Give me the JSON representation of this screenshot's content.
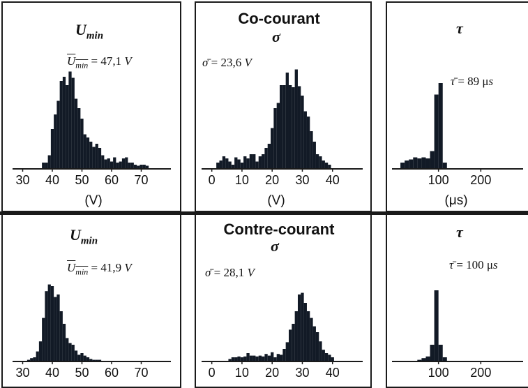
{
  "figure": {
    "rows": [
      {
        "heading": "Co-courant",
        "panels": [
          {
            "var_base": "U",
            "var_sub": "min",
            "stat_lhs_base": "U",
            "stat_lhs_sub": "min",
            "stat_rhs": "= 47,1 ",
            "stat_unit": "V",
            "unit": "(V)"
          },
          {
            "var_symbol": "σ",
            "stat_lhs": "σ̄",
            "stat_rhs": " = 23,6 ",
            "stat_unit": "V",
            "unit": "(V)"
          },
          {
            "var_symbol": "τ",
            "stat_lhs": "τ̄",
            "stat_rhs": " = 89 μ",
            "stat_unit": "s",
            "unit": "(μs)"
          }
        ]
      },
      {
        "heading": "Contre-courant",
        "panels": [
          {
            "var_base": "U",
            "var_sub": "min",
            "stat_lhs_base": "U",
            "stat_lhs_sub": "min",
            "stat_rhs": "= 41,9 ",
            "stat_unit": "V",
            "unit": ""
          },
          {
            "var_symbol": "σ",
            "stat_lhs": "σ̄",
            "stat_rhs": " = 28,1 ",
            "stat_unit": "V",
            "unit": ""
          },
          {
            "var_symbol": "τ",
            "stat_lhs": "τ̄",
            "stat_rhs": " = 100 μ",
            "stat_unit": "s",
            "unit": ""
          }
        ]
      }
    ]
  },
  "style": {
    "bar_color": "#121a26",
    "axis_color": "#1a1a1a",
    "frame_color": "#1a1a1a"
  },
  "chart_data": [
    {
      "type": "bar",
      "id": "co-umin",
      "xlim": [
        28,
        80
      ],
      "ylim": [
        0,
        100
      ],
      "xticks": [
        30,
        40,
        50,
        60,
        70
      ],
      "xtick_labels": [
        "30",
        "40",
        "50",
        "60",
        "70"
      ],
      "bin_width": 1,
      "x": [
        37,
        38,
        39,
        40,
        41,
        42,
        43,
        44,
        45,
        46,
        47,
        48,
        49,
        50,
        51,
        52,
        53,
        54,
        55,
        56,
        57,
        58,
        59,
        60,
        61,
        62,
        63,
        64,
        65,
        66,
        67,
        68,
        69,
        70,
        71,
        72
      ],
      "values": [
        6,
        6,
        13,
        38,
        52,
        65,
        84,
        88,
        80,
        93,
        87,
        67,
        58,
        48,
        33,
        30,
        26,
        21,
        24,
        20,
        13,
        9,
        10,
        7,
        11,
        6,
        7,
        10,
        11,
        6,
        6,
        4,
        3,
        4,
        4,
        3
      ]
    },
    {
      "type": "bar",
      "id": "co-sigma",
      "xlim": [
        -2,
        50
      ],
      "ylim": [
        0,
        100
      ],
      "xticks": [
        0,
        10,
        20,
        30,
        40
      ],
      "xtick_labels": [
        "0",
        "10",
        "20",
        "30",
        "40"
      ],
      "bin_width": 1,
      "x": [
        2,
        3,
        4,
        5,
        6,
        7,
        8,
        9,
        10,
        11,
        12,
        13,
        14,
        15,
        16,
        17,
        18,
        19,
        20,
        21,
        22,
        23,
        24,
        25,
        26,
        27,
        28,
        29,
        30,
        31,
        32,
        33,
        34,
        35,
        36,
        37,
        38,
        39
      ],
      "values": [
        6,
        8,
        12,
        10,
        7,
        4,
        11,
        9,
        6,
        12,
        10,
        14,
        14,
        7,
        12,
        14,
        20,
        24,
        39,
        58,
        63,
        80,
        80,
        92,
        80,
        78,
        95,
        79,
        70,
        55,
        50,
        36,
        26,
        14,
        12,
        8,
        6,
        4
      ]
    },
    {
      "type": "bar",
      "id": "co-tau",
      "xlim": [
        0,
        300
      ],
      "ylim": [
        0,
        100
      ],
      "xticks": [
        100,
        200
      ],
      "xtick_labels": [
        "100",
        "200"
      ],
      "bin_width": 10,
      "x": [
        15,
        25,
        35,
        45,
        55,
        65,
        75,
        85,
        95,
        105,
        115
      ],
      "values": [
        6,
        8,
        9,
        11,
        10,
        11,
        10,
        17,
        71,
        82,
        6
      ]
    },
    {
      "type": "bar",
      "id": "contre-umin",
      "xlim": [
        28,
        80
      ],
      "ylim": [
        0,
        100
      ],
      "xticks": [
        30,
        40,
        50,
        60,
        70
      ],
      "xtick_labels": [
        "30",
        "40",
        "50",
        "60",
        "70"
      ],
      "bin_width": 1,
      "x": [
        32,
        33,
        34,
        35,
        36,
        37,
        38,
        39,
        40,
        41,
        42,
        43,
        44,
        45,
        46,
        47,
        48,
        49,
        50,
        51,
        52,
        53,
        54,
        55,
        56
      ],
      "values": [
        2,
        4,
        5,
        12,
        24,
        52,
        84,
        92,
        90,
        77,
        80,
        60,
        45,
        28,
        22,
        20,
        13,
        8,
        10,
        7,
        5,
        3,
        2,
        2,
        2
      ]
    },
    {
      "type": "bar",
      "id": "contre-sigma",
      "xlim": [
        -2,
        50
      ],
      "ylim": [
        0,
        100
      ],
      "xticks": [
        0,
        10,
        20,
        30,
        40
      ],
      "xtick_labels": [
        "0",
        "10",
        "20",
        "30",
        "40"
      ],
      "bin_width": 1,
      "x": [
        6,
        7,
        8,
        9,
        10,
        11,
        12,
        13,
        14,
        15,
        16,
        17,
        18,
        19,
        20,
        21,
        22,
        23,
        24,
        25,
        26,
        27,
        28,
        29,
        30,
        31,
        32,
        33,
        34,
        35,
        36,
        37,
        38,
        39,
        40
      ],
      "values": [
        3,
        5,
        5,
        6,
        5,
        6,
        10,
        7,
        7,
        6,
        7,
        6,
        9,
        7,
        11,
        5,
        9,
        8,
        15,
        23,
        38,
        45,
        60,
        80,
        82,
        70,
        60,
        52,
        42,
        35,
        24,
        14,
        10,
        8,
        5
      ]
    },
    {
      "type": "bar",
      "id": "contre-tau",
      "xlim": [
        0,
        300
      ],
      "ylim": [
        0,
        100
      ],
      "xticks": [
        100,
        200
      ],
      "xtick_labels": [
        "100",
        "200"
      ],
      "bin_width": 10,
      "x": [
        55,
        65,
        75,
        85,
        95,
        105,
        115
      ],
      "values": [
        2,
        4,
        6,
        20,
        85,
        20,
        5
      ]
    }
  ]
}
